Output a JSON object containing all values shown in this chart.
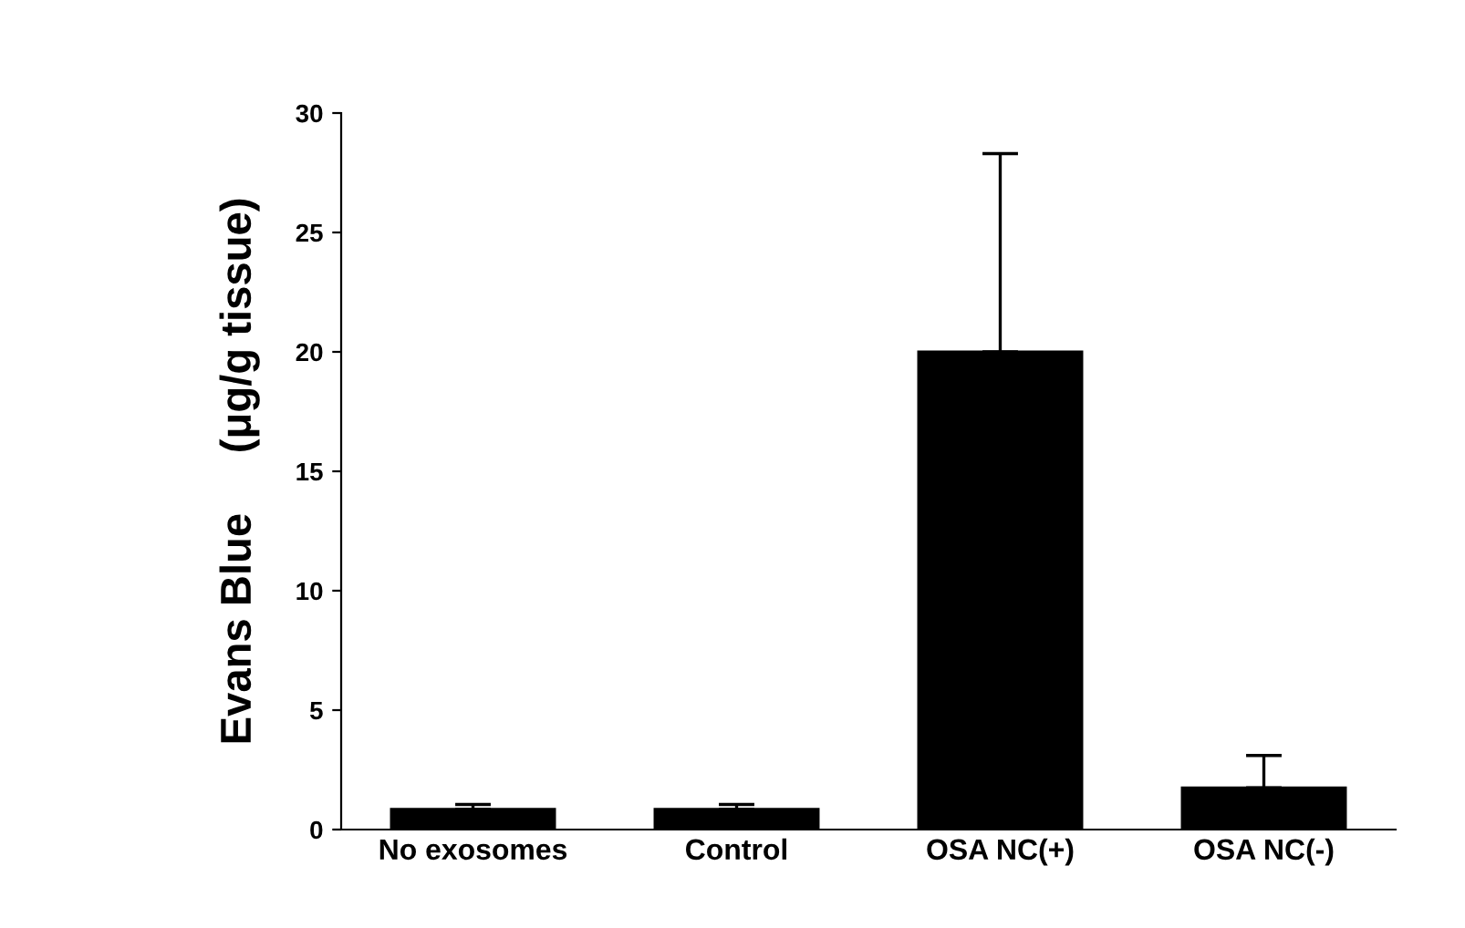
{
  "chart_data": {
    "type": "bar",
    "ylabel": "Evans Blue     (μg/g tissue)",
    "categories": [
      "No exosomes",
      "Control",
      "OSA NC(+)",
      "OSA NC(-)"
    ],
    "values": [
      0.85,
      0.85,
      20,
      1.75
    ],
    "errors": [
      [
        0.85,
        1.05
      ],
      [
        0.85,
        1.05
      ],
      [
        20,
        28.3
      ],
      [
        1.75,
        3.1
      ]
    ],
    "color": "#000000",
    "ylim": [
      0,
      30
    ],
    "yticks": [
      0,
      5,
      10,
      15,
      20,
      25,
      30
    ],
    "grid": false,
    "legend": false
  }
}
